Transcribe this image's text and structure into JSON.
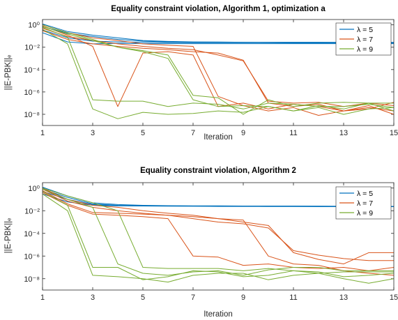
{
  "chart_data": [
    {
      "type": "line",
      "title": "Equality constraint violation, Algorithm 1, optimization a",
      "xlabel": "Iteration",
      "ylabel": "||E-PBK||ₑ",
      "xlim": [
        1,
        15
      ],
      "ylim": [
        1e-09,
        3
      ],
      "yscale": "log",
      "xticks": [
        "1",
        "3",
        "5",
        "7",
        "9",
        "11",
        "13",
        "15"
      ],
      "yticks": [
        {
          "exp": 0,
          "label": "10⁰"
        },
        {
          "exp": -2,
          "label": "10⁻²"
        },
        {
          "exp": -4,
          "label": "10⁻⁴"
        },
        {
          "exp": -6,
          "label": "10⁻⁶"
        },
        {
          "exp": -8,
          "label": "10⁻⁸"
        }
      ],
      "legend_position": "top-right",
      "x": [
        1,
        2,
        3,
        4,
        5,
        6,
        7,
        8,
        9,
        10,
        11,
        12,
        13,
        14,
        15
      ],
      "series": [
        {
          "name": "λ = 5",
          "color": "#0072BD",
          "lines": [
            [
              1.2,
              0.25,
              0.12,
              0.07,
              0.04,
              0.033,
              0.03,
              0.029,
              0.028,
              0.028,
              0.028,
              0.028,
              0.027,
              0.027,
              0.027
            ],
            [
              0.7,
              0.18,
              0.09,
              0.05,
              0.035,
              0.03,
              0.028,
              0.027,
              0.027,
              0.026,
              0.026,
              0.026,
              0.026,
              0.026,
              0.026
            ],
            [
              0.35,
              0.07,
              0.035,
              0.03,
              0.028,
              0.026,
              0.025,
              0.025,
              0.025,
              0.025,
              0.024,
              0.024,
              0.024,
              0.024,
              0.024
            ],
            [
              0.2,
              0.03,
              0.02,
              0.022,
              0.021,
              0.021,
              0.021,
              0.021,
              0.021,
              0.021,
              0.021,
              0.021,
              0.021,
              0.021,
              0.021
            ]
          ]
        },
        {
          "name": "λ = 7",
          "color": "#D95319",
          "lines": [
            [
              0.8,
              0.12,
              0.012,
              5e-08,
              0.003,
              0.004,
              0.002,
              5e-08,
              1e-07,
              3e-08,
              8e-08,
              5e-08,
              2e-08,
              3e-08,
              1.2e-07
            ],
            [
              1.0,
              0.2,
              0.07,
              0.04,
              0.02,
              0.015,
              0.012,
              4e-07,
              6e-08,
              2e-08,
              4e-08,
              8e-09,
              2e-08,
              4e-08,
              2e-08
            ],
            [
              0.5,
              0.09,
              0.04,
              0.02,
              0.012,
              0.008,
              0.006,
              0.002,
              0.0006,
              1.5e-07,
              1e-07,
              1.2e-07,
              5e-08,
              1e-07,
              6e-08
            ],
            [
              0.3,
              0.05,
              0.02,
              0.012,
              0.008,
              0.006,
              0.004,
              0.003,
              0.0007,
              1e-07,
              5e-08,
              8e-08,
              2e-08,
              6e-08,
              1e-08
            ]
          ]
        },
        {
          "name": "λ = 9",
          "color": "#77AC30",
          "lines": [
            [
              0.4,
              0.02,
              3e-08,
              4e-09,
              1.5e-08,
              1e-08,
              1.2e-08,
              2e-08,
              1.5e-08,
              5e-08,
              2e-08,
              4e-08,
              1e-08,
              3e-08,
              4e-08
            ],
            [
              0.6,
              0.08,
              2e-07,
              1.5e-07,
              1.5e-07,
              5e-08,
              1e-07,
              8e-08,
              3e-08,
              1e-07,
              8e-08,
              5e-08,
              5e-08,
              8e-08,
              4e-08
            ],
            [
              1.0,
              0.2,
              0.05,
              0.01,
              0.005,
              0.002,
              5e-07,
              3e-07,
              1e-08,
              2e-07,
              5e-08,
              1e-07,
              1.2e-07,
              1e-07,
              2e-08
            ],
            [
              0.7,
              0.15,
              0.04,
              0.01,
              0.004,
              0.001,
              2e-07,
              5e-08,
              6e-08,
              5e-08,
              2e-08,
              6e-08,
              3e-08,
              1e-07,
              1e-07
            ]
          ]
        }
      ]
    },
    {
      "type": "line",
      "title": "Equality constraint violation, Algorithm 2",
      "xlabel": "Iteration",
      "ylabel": "||E-PBK||ₑ",
      "xlim": [
        1,
        15
      ],
      "ylim": [
        1e-09,
        3
      ],
      "yscale": "log",
      "xticks": [
        "1",
        "3",
        "5",
        "7",
        "9",
        "11",
        "13",
        "15"
      ],
      "yticks": [
        {
          "exp": 0,
          "label": "10⁰"
        },
        {
          "exp": -2,
          "label": "10⁻²"
        },
        {
          "exp": -4,
          "label": "10⁻⁴"
        },
        {
          "exp": -6,
          "label": "10⁻⁶"
        },
        {
          "exp": -8,
          "label": "10⁻⁸"
        }
      ],
      "legend_position": "top-right",
      "x": [
        1,
        2,
        3,
        4,
        5,
        6,
        7,
        8,
        9,
        10,
        11,
        12,
        13,
        14,
        15
      ],
      "series": [
        {
          "name": "λ = 5",
          "color": "#0072BD",
          "lines": [
            [
              1.2,
              0.2,
              0.05,
              0.035,
              0.03,
              0.028,
              0.027,
              0.027,
              0.026,
              0.026,
              0.026,
              0.025,
              0.025,
              0.025,
              0.024
            ],
            [
              0.8,
              0.15,
              0.04,
              0.03,
              0.028,
              0.027,
              0.026,
              0.026,
              0.025,
              0.025,
              0.025,
              0.025,
              0.024,
              0.024,
              0.024
            ],
            [
              0.5,
              0.1,
              0.035,
              0.028,
              0.027,
              0.026,
              0.025,
              0.025,
              0.025,
              0.024,
              0.024,
              0.024,
              0.024,
              0.024,
              0.023
            ],
            [
              0.3,
              0.06,
              0.03,
              0.027,
              0.026,
              0.025,
              0.025,
              0.024,
              0.024,
              0.024,
              0.024,
              0.023,
              0.023,
              0.023,
              0.023
            ]
          ]
        },
        {
          "name": "λ = 7",
          "color": "#D95319",
          "lines": [
            [
              0.6,
              0.04,
              0.007,
              0.006,
              0.005,
              0.004,
              0.003,
              0.002,
              0.0015,
              1e-06,
              2e-07,
              1.5e-07,
              5e-08,
              3e-08,
              2e-08
            ],
            [
              0.4,
              0.03,
              0.005,
              0.004,
              0.003,
              0.002,
              1e-06,
              8e-07,
              1.5e-07,
              2e-07,
              1e-07,
              8e-08,
              1e-07,
              5e-08,
              1e-07
            ],
            [
              0.8,
              0.07,
              0.02,
              0.01,
              0.006,
              0.004,
              0.002,
              0.001,
              0.0007,
              0.0003,
              3e-06,
              1.2e-06,
              6e-07,
              4e-07,
              4e-07
            ],
            [
              1.0,
              0.1,
              0.03,
              0.02,
              0.01,
              0.006,
              0.004,
              0.002,
              0.001,
              0.0005,
              2e-06,
              5e-07,
              2e-07,
              2e-06,
              2e-06
            ]
          ]
        },
        {
          "name": "λ = 9",
          "color": "#77AC30",
          "lines": [
            [
              0.3,
              0.01,
              2e-08,
              1.5e-08,
              1e-08,
              5e-09,
              2e-08,
              3e-08,
              3e-08,
              8e-09,
              2e-08,
              3e-08,
              1e-08,
              4e-09,
              1e-08
            ],
            [
              0.5,
              0.03,
              1e-07,
              1e-07,
              8e-09,
              1.5e-08,
              5e-08,
              4e-08,
              1.5e-08,
              2e-08,
              5e-08,
              4e-08,
              1.5e-08,
              2e-08,
              3e-08
            ],
            [
              0.8,
              0.1,
              0.02,
              2e-07,
              3e-08,
              2e-08,
              4e-08,
              5e-08,
              2e-08,
              6e-08,
              1e-07,
              1e-07,
              5e-08,
              5e-08,
              5e-08
            ],
            [
              1.0,
              0.2,
              0.05,
              0.01,
              1e-07,
              8e-08,
              8e-08,
              8e-08,
              5e-08,
              8e-08,
              5e-08,
              3e-08,
              4e-08,
              4e-08,
              4e-08
            ]
          ]
        }
      ]
    }
  ]
}
